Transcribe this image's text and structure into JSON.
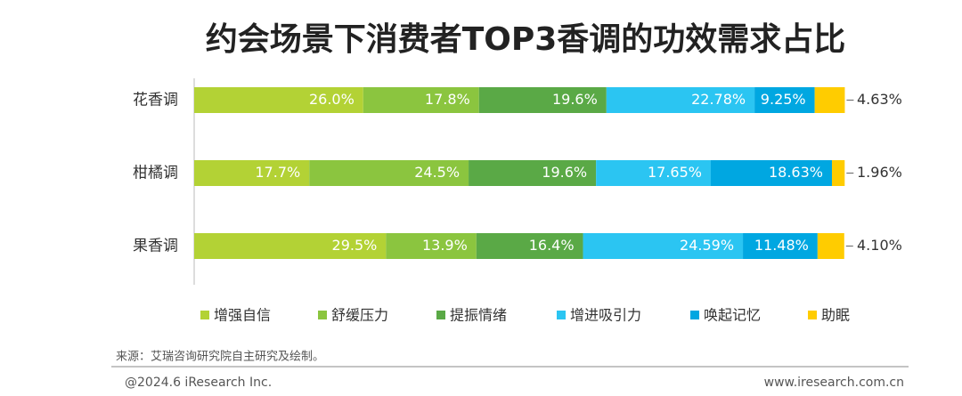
{
  "chart_data": {
    "type": "stacked_barh",
    "title": "约会场景下消费者TOP3香调的功效需求占比",
    "categories": [
      "花香调",
      "柑橘调",
      "果香调"
    ],
    "series": [
      {
        "name": "增强自信",
        "color": "#b3d235",
        "values": [
          26.0,
          17.7,
          29.5
        ],
        "value_labels": [
          "26.0%",
          "17.7%",
          "29.5%"
        ]
      },
      {
        "name": "舒缓压力",
        "color": "#8bc53f",
        "values": [
          17.8,
          24.5,
          13.9
        ],
        "value_labels": [
          "17.8%",
          "24.5%",
          "13.9%"
        ]
      },
      {
        "name": "提振情绪",
        "color": "#5aa946",
        "values": [
          19.6,
          19.6,
          16.4
        ],
        "value_labels": [
          "19.6%",
          "19.6%",
          "16.4%"
        ]
      },
      {
        "name": "增进吸引力",
        "color": "#2bc5f2",
        "values": [
          22.78,
          17.65,
          24.59
        ],
        "value_labels": [
          "22.78%",
          "17.65%",
          "24.59%"
        ]
      },
      {
        "name": "唤起记忆",
        "color": "#00a7e1",
        "values": [
          9.25,
          18.63,
          11.48
        ],
        "value_labels": [
          "9.25%",
          "18.63%",
          "11.48%"
        ]
      },
      {
        "name": "助眠",
        "color": "#ffcc00",
        "values": [
          4.63,
          1.96,
          4.1
        ],
        "value_labels": [
          "4.63%",
          "1.96%",
          "4.10%"
        ]
      }
    ],
    "xlim": [
      0,
      100
    ],
    "source": "来源：艾瑞咨询研究院自主研究及绘制。",
    "copyright": "@2024.6 iResearch Inc.",
    "website": "www.iresearch.com.cn"
  }
}
